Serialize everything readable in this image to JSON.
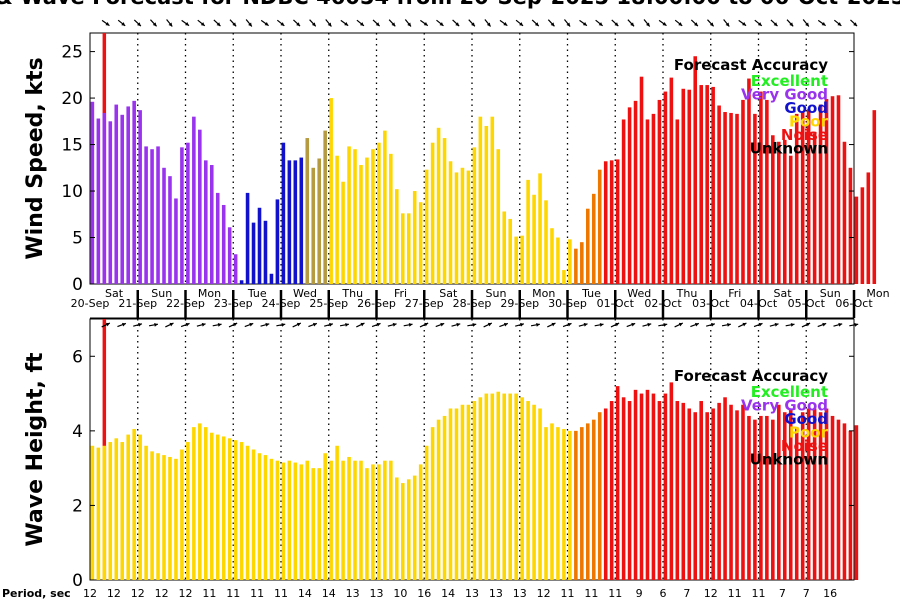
{
  "title": "& Wave Forecast for NDBC 46054 from 20-Sep-2025 18:00:00 to 06-Oct-2025",
  "colors": {
    "excellent": "#22ee22",
    "very_good": "#9933ee",
    "good": "#1111cc",
    "poor": "#ffd700",
    "noise": "#ee1111",
    "unknown": "#000000",
    "transition": "#ee7700",
    "olive": "#b59a40",
    "now_line": "#ee1111"
  },
  "legend": {
    "title": "Forecast Accuracy",
    "items": [
      "Excellent",
      "Very Good",
      "Good",
      "Poor",
      "Noise",
      "Unknown"
    ]
  },
  "day_labels": [
    "Sat",
    "Sun",
    "Mon",
    "Tue",
    "Wed",
    "Thu",
    "Fri",
    "Sat",
    "Sun",
    "Mon",
    "Tue",
    "Wed",
    "Thu",
    "Fri",
    "Sat",
    "Sun",
    "Mon"
  ],
  "date_labels": [
    "20-Sep",
    "21-Sep",
    "22-Sep",
    "23-Sep",
    "24-Sep",
    "25-Sep",
    "26-Sep",
    "27-Sep",
    "28-Sep",
    "29-Sep",
    "30-Sep",
    "01-Oct",
    "02-Oct",
    "03-Oct",
    "04-Oct",
    "05-Oct",
    "06-Oct"
  ],
  "period_label": "Period, sec",
  "periods": [
    "12",
    "12",
    "12",
    "12",
    "12",
    "11",
    "11",
    "11",
    "11",
    "14",
    "14",
    "13",
    "13",
    "10",
    "16",
    "14",
    "13",
    "13",
    "13",
    "12",
    "11",
    "11",
    "11",
    "9",
    "6",
    "7",
    "12",
    "11",
    "11",
    "7",
    "7",
    "16"
  ],
  "chart_data": [
    {
      "type": "bar",
      "name": "wind",
      "ylabel": "Wind Speed, kts",
      "ylim": [
        0,
        27
      ],
      "yticks": [
        0,
        5,
        10,
        15,
        20,
        25
      ],
      "xlim": [
        0,
        16
      ],
      "x_start": 0.05,
      "x_step": 0.125,
      "values": [
        19.6,
        17.8,
        18.4,
        17.5,
        19.3,
        18.2,
        19.1,
        19.7,
        18.7,
        14.8,
        14.5,
        14.8,
        12.5,
        11.6,
        9.2,
        14.7,
        15.2,
        18,
        16.6,
        13.3,
        12.8,
        9.8,
        8.5,
        6.1,
        3.2,
        0.4,
        9.8,
        6.6,
        8.2,
        6.8,
        1.1,
        9.1,
        15.2,
        13.3,
        13.3,
        13.6,
        15.7,
        12.5,
        13.5,
        16.5,
        20,
        13.8,
        11,
        14.8,
        14.5,
        12.8,
        13.6,
        14.5,
        15.2,
        16.5,
        14,
        10.2,
        7.6,
        7.6,
        10,
        8.8,
        12.3,
        15.2,
        16.8,
        15.7,
        13.2,
        12,
        12.5,
        12.2,
        14.7,
        18,
        17,
        18,
        14.5,
        7.8,
        7,
        5.1,
        5.2,
        11.2,
        9.6,
        11.9,
        9,
        6,
        5,
        1.5,
        4.8,
        3.8,
        4.5,
        8.1,
        9.7,
        12.3,
        13.2,
        13.3,
        13.4,
        17.7,
        19,
        19.7,
        22.3,
        17.7,
        18.3,
        19.8,
        20.7,
        22.2,
        17.7,
        21,
        20.9,
        24.5,
        21.4,
        21.4,
        21.2,
        19.2,
        18.5,
        18.4,
        18.3,
        19.8,
        22.1,
        18.3,
        20.7,
        19.8,
        16,
        15.3,
        15.5,
        13.8,
        18.3,
        18.5,
        18.8,
        16.2,
        19.3,
        19.9,
        20.2,
        20.3,
        15.3,
        12.5,
        9.4,
        10.4,
        12,
        18.7
      ],
      "cats": "VVVVVVVVVVVVVVVVVVVVVVVVVBBBBBBBBBBBOOOOPPPPPPPPPPPPPPPPPPPPPPPPPPPPPPPPPPPPPPPPPTTTTTRRRRRRRRRRRRRRRRRRRRRRRRRRRRRRRRRRRRRRRRRRRRRRRRR"
    },
    {
      "type": "bar",
      "name": "wave",
      "ylabel": "Wave Height, ft",
      "ylim": [
        0,
        7
      ],
      "yticks": [
        0,
        2,
        4,
        6
      ],
      "xlim": [
        0,
        16
      ],
      "x_start": 0.05,
      "x_step": 0.125,
      "values": [
        3.6,
        3.55,
        3.6,
        3.7,
        3.8,
        3.7,
        3.9,
        4.05,
        3.9,
        3.6,
        3.45,
        3.4,
        3.35,
        3.3,
        3.25,
        3.5,
        3.7,
        4.1,
        4.2,
        4.1,
        3.95,
        3.9,
        3.85,
        3.8,
        3.75,
        3.7,
        3.6,
        3.5,
        3.4,
        3.35,
        3.25,
        3.2,
        3.15,
        3.2,
        3.15,
        3.1,
        3.2,
        3,
        3,
        3.4,
        3.2,
        3.6,
        3.2,
        3.3,
        3.2,
        3.2,
        3,
        3.1,
        3.1,
        3.2,
        3.2,
        2.75,
        2.6,
        2.7,
        2.8,
        3.1,
        3.6,
        4.1,
        4.3,
        4.4,
        4.6,
        4.6,
        4.7,
        4.7,
        4.8,
        4.9,
        5,
        5,
        5.05,
        5,
        5,
        5,
        4.9,
        4.8,
        4.7,
        4.6,
        4.1,
        4.2,
        4.1,
        4.05,
        4,
        4,
        4.1,
        4.2,
        4.3,
        4.5,
        4.6,
        4.8,
        5.2,
        4.9,
        4.8,
        5.1,
        5,
        5.1,
        5,
        4.8,
        5,
        5.3,
        4.8,
        4.75,
        4.6,
        4.5,
        4.8,
        4.5,
        4.6,
        4.75,
        4.9,
        4.7,
        4.55,
        4.7,
        4.4,
        4.3,
        4.4,
        4.4,
        4.3,
        4.7,
        4.5,
        4.6,
        4.1,
        4.5,
        4.6,
        4.6,
        4.5,
        4.6,
        4.4,
        4.3,
        4.2,
        4,
        4.15
      ],
      "cats": "PPPPPPPPPPPPPPPPPPPPPPPPPPPPPPPPPPPPPPPPPPPPPPPPPPPPPPPPPPPPPPPPPPPPPPPPPPPPPPPPPTTTTTRRRRRRRRRRRRRRRRRRRRRRRRRRRRRRRRRRRRRRRRRRRRRRRRRRR"
    }
  ]
}
